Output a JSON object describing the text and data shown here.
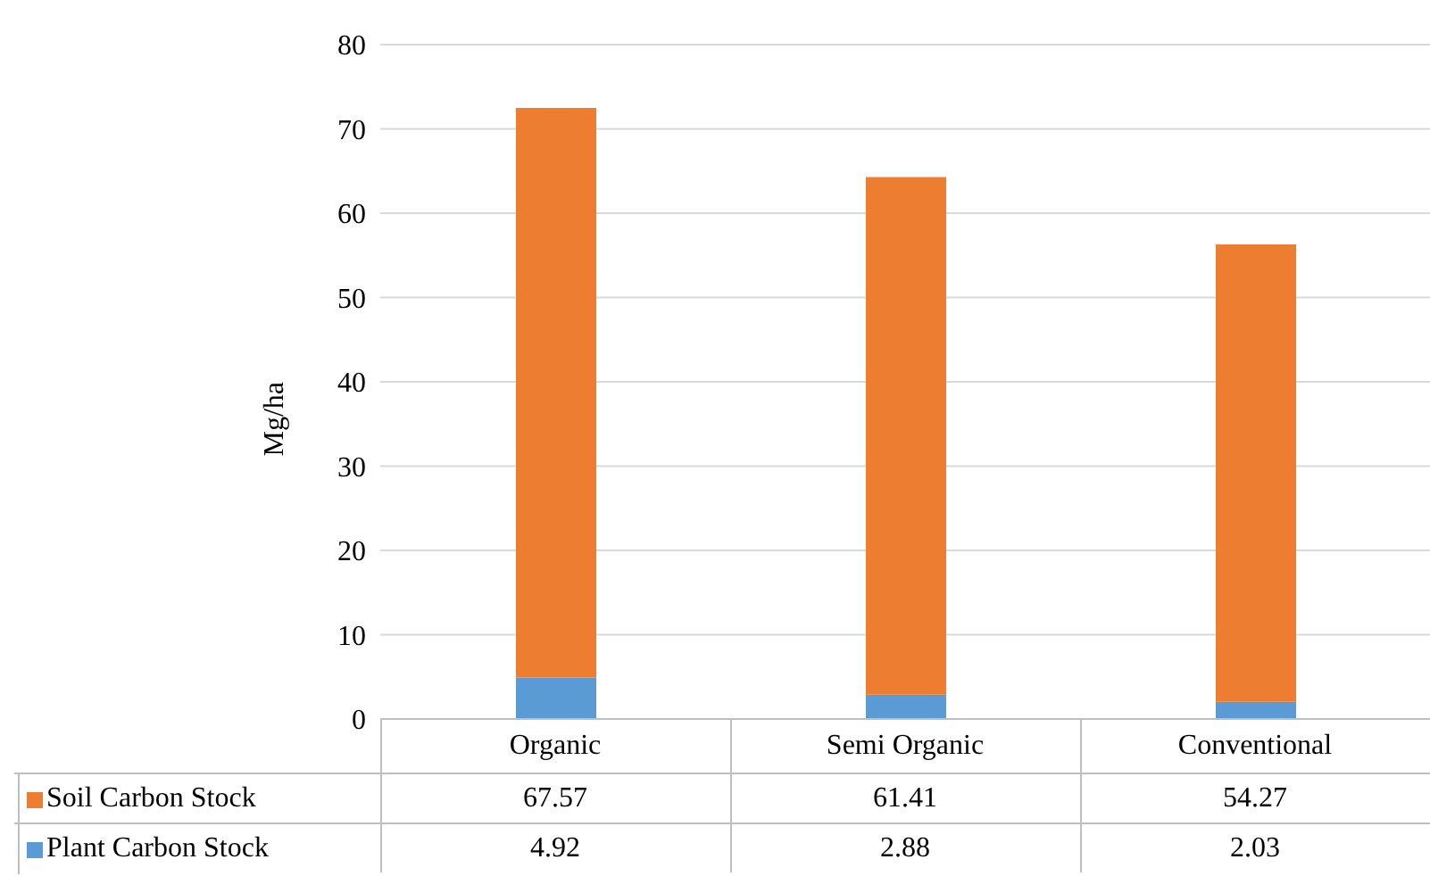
{
  "chart_data": {
    "type": "bar",
    "stacked": true,
    "ylabel": "Mg/ha",
    "categories": [
      "Organic",
      "Semi Organic",
      "Conventional"
    ],
    "series": [
      {
        "name": "Plant Carbon Stock",
        "color": "#5b9bd5",
        "values": [
          4.92,
          2.88,
          2.03
        ]
      },
      {
        "name": "Soil Carbon Stock",
        "color": "#ed7d31",
        "values": [
          67.57,
          61.41,
          54.27
        ]
      }
    ],
    "ylim": [
      0,
      80
    ],
    "yticks": [
      0,
      10,
      20,
      30,
      40,
      50,
      60,
      70,
      80
    ],
    "grid": "y",
    "legend": "bottom",
    "data_labels": true
  }
}
